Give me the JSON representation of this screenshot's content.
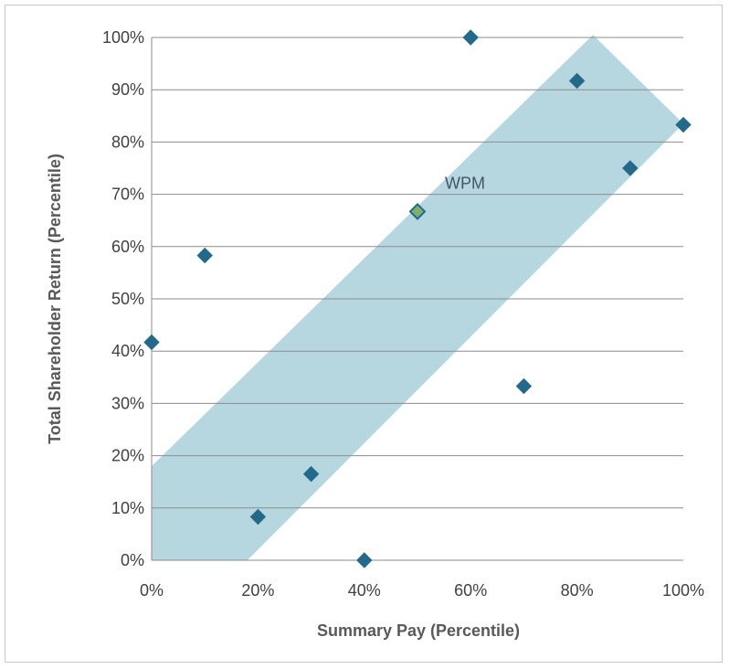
{
  "chart_data": {
    "type": "scatter",
    "title": "",
    "xlabel": "Summary Pay (Percentile)",
    "ylabel": "Total Shareholder Return (Percentile)",
    "xlim": [
      0,
      100
    ],
    "ylim": [
      0,
      100
    ],
    "x_ticks": [
      "0%",
      "20%",
      "40%",
      "60%",
      "80%",
      "100%"
    ],
    "y_ticks": [
      "0%",
      "10%",
      "20%",
      "30%",
      "40%",
      "50%",
      "60%",
      "70%",
      "80%",
      "90%",
      "100%"
    ],
    "grid": "horizontal",
    "band": {
      "description": "shaded alignment band",
      "polygon": [
        [
          0,
          0
        ],
        [
          18,
          0
        ],
        [
          100,
          83.5
        ],
        [
          83,
          100.5
        ],
        [
          0,
          18
        ]
      ]
    },
    "series": [
      {
        "points": [
          {
            "x": 0,
            "y": 41.7
          },
          {
            "x": 10,
            "y": 58.3
          },
          {
            "x": 20,
            "y": 8.3
          },
          {
            "x": 30,
            "y": 16.5
          },
          {
            "x": 40,
            "y": 0
          },
          {
            "x": 60,
            "y": 100
          },
          {
            "x": 70,
            "y": 33.3
          },
          {
            "x": 80,
            "y": 91.7
          },
          {
            "x": 90,
            "y": 75
          },
          {
            "x": 100,
            "y": 83.3
          }
        ]
      },
      {
        "points": [
          {
            "x": 50,
            "y": 66.7,
            "label": "WPM"
          }
        ]
      }
    ],
    "colors": {
      "peer": "#236a8a",
      "highlight": "#7fb069",
      "highlight_border": "#236a8a",
      "band": "#b6d6e0",
      "grid": "#8c8c8c"
    }
  }
}
